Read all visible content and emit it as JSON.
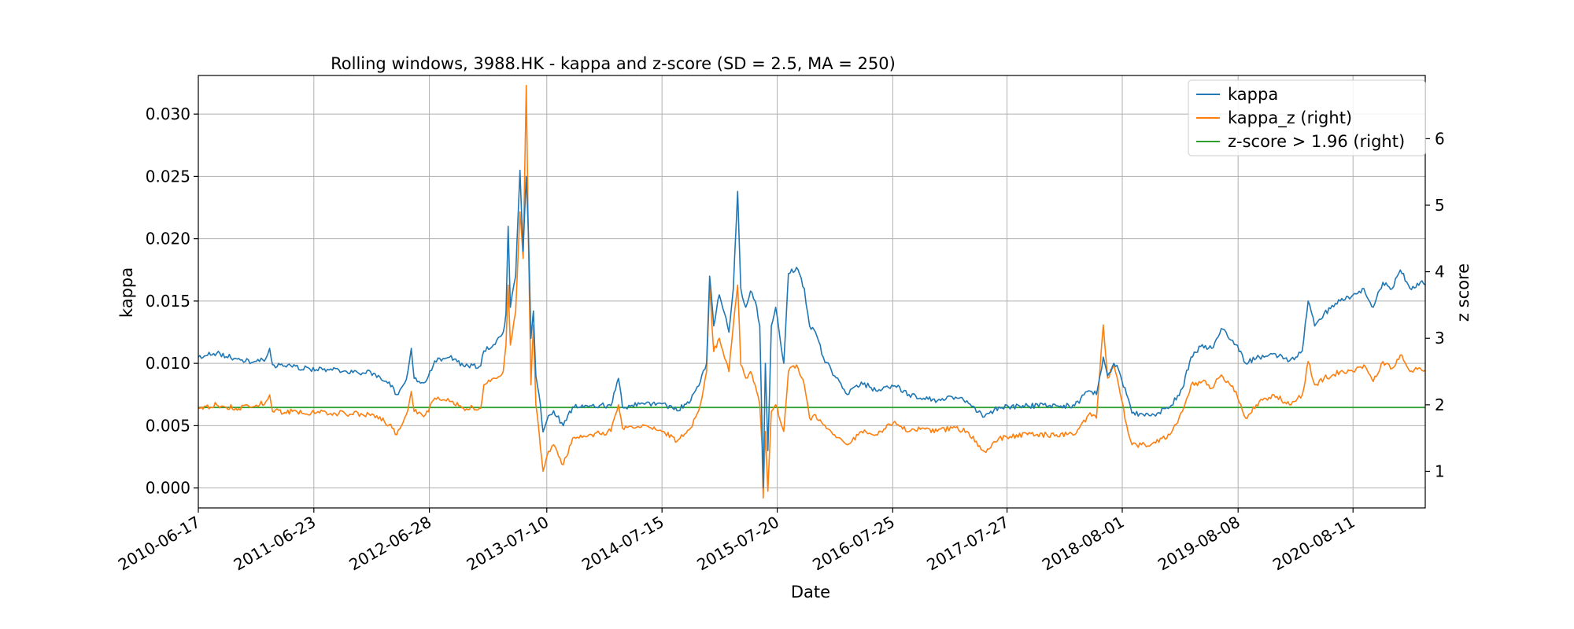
{
  "chart_data": {
    "type": "line",
    "title": "Rolling windows, 3988.HK - kappa and z-score (SD = 2.5, MA = 250)",
    "xlabel": "Date",
    "ylabel": "kappa",
    "ylabel_right": "z score",
    "xlim": [
      "2010-06-17",
      "2021-03-31"
    ],
    "ylim": [
      -0.0016,
      0.0331
    ],
    "ylim_right": [
      0.45,
      6.95
    ],
    "x_ticks": [
      "2010-06-17",
      "2011-06-23",
      "2012-06-28",
      "2013-07-10",
      "2014-07-15",
      "2015-07-20",
      "2016-07-25",
      "2017-07-27",
      "2018-08-01",
      "2019-08-08",
      "2020-08-11"
    ],
    "y_ticks": [
      "0.000",
      "0.005",
      "0.010",
      "0.015",
      "0.020",
      "0.025",
      "0.030"
    ],
    "y_ticks_right": [
      "1",
      "2",
      "3",
      "4",
      "5",
      "6"
    ],
    "grid": true,
    "legend_position": "top-right",
    "colors": {
      "kappa": "#1f77b4",
      "kappa_z": "#ff7f0e",
      "threshold": "#2ca02c"
    },
    "series": [
      {
        "name": "kappa",
        "axis": "left",
        "points": [
          [
            "2010-06-17",
            0.0105
          ],
          [
            "2010-08-15",
            0.0108
          ],
          [
            "2010-10-15",
            0.0104
          ],
          [
            "2010-12-10",
            0.0101
          ],
          [
            "2011-01-20",
            0.0104
          ],
          [
            "2011-02-01",
            0.0112
          ],
          [
            "2011-02-10",
            0.0099
          ],
          [
            "2011-04-15",
            0.0097
          ],
          [
            "2011-07-01",
            0.0095
          ],
          [
            "2011-10-01",
            0.0094
          ],
          [
            "2012-01-01",
            0.0092
          ],
          [
            "2012-02-20",
            0.0085
          ],
          [
            "2012-03-15",
            0.0075
          ],
          [
            "2012-04-15",
            0.0087
          ],
          [
            "2012-05-01",
            0.0112
          ],
          [
            "2012-05-10",
            0.0088
          ],
          [
            "2012-06-15",
            0.0085
          ],
          [
            "2012-07-15",
            0.0102
          ],
          [
            "2012-09-01",
            0.0105
          ],
          [
            "2012-10-15",
            0.0098
          ],
          [
            "2012-12-10",
            0.0098
          ],
          [
            "2012-12-20",
            0.011
          ],
          [
            "2013-01-20",
            0.0115
          ],
          [
            "2013-02-20",
            0.0125
          ],
          [
            "2013-03-01",
            0.014
          ],
          [
            "2013-03-08",
            0.021
          ],
          [
            "2013-03-15",
            0.0145
          ],
          [
            "2013-04-01",
            0.017
          ],
          [
            "2013-04-15",
            0.0255
          ],
          [
            "2013-04-25",
            0.019
          ],
          [
            "2013-05-05",
            0.025
          ],
          [
            "2013-05-12",
            0.0205
          ],
          [
            "2013-05-20",
            0.012
          ],
          [
            "2013-05-28",
            0.0142
          ],
          [
            "2013-06-05",
            0.009
          ],
          [
            "2013-06-15",
            0.0075
          ],
          [
            "2013-06-28",
            0.0045
          ],
          [
            "2013-07-15",
            0.0058
          ],
          [
            "2013-08-01",
            0.0062
          ],
          [
            "2013-09-01",
            0.005
          ],
          [
            "2013-10-01",
            0.0065
          ],
          [
            "2013-12-01",
            0.0066
          ],
          [
            "2014-02-01",
            0.0066
          ],
          [
            "2014-02-25",
            0.0088
          ],
          [
            "2014-03-10",
            0.0065
          ],
          [
            "2014-05-15",
            0.0068
          ],
          [
            "2014-07-20",
            0.0068
          ],
          [
            "2014-09-01",
            0.0062
          ],
          [
            "2014-10-15",
            0.007
          ],
          [
            "2014-11-15",
            0.0085
          ],
          [
            "2014-12-05",
            0.01
          ],
          [
            "2014-12-15",
            0.017
          ],
          [
            "2014-12-28",
            0.013
          ],
          [
            "2015-01-15",
            0.0155
          ],
          [
            "2015-02-01",
            0.014
          ],
          [
            "2015-02-15",
            0.0125
          ],
          [
            "2015-03-01",
            0.016
          ],
          [
            "2015-03-15",
            0.0238
          ],
          [
            "2015-03-25",
            0.016
          ],
          [
            "2015-04-10",
            0.0145
          ],
          [
            "2015-04-25",
            0.0158
          ],
          [
            "2015-05-10",
            0.015
          ],
          [
            "2015-05-25",
            0.013
          ],
          [
            "2015-06-01",
            0.005
          ],
          [
            "2015-06-05",
            0.0
          ],
          [
            "2015-06-12",
            0.01
          ],
          [
            "2015-06-20",
            0.003
          ],
          [
            "2015-07-01",
            0.013
          ],
          [
            "2015-07-15",
            0.0145
          ],
          [
            "2015-08-10",
            0.01
          ],
          [
            "2015-08-25",
            0.0172
          ],
          [
            "2015-09-20",
            0.0177
          ],
          [
            "2015-10-15",
            0.016
          ],
          [
            "2015-11-01",
            0.013
          ],
          [
            "2015-11-20",
            0.0125
          ],
          [
            "2015-12-15",
            0.0105
          ],
          [
            "2016-01-20",
            0.009
          ],
          [
            "2016-03-01",
            0.0075
          ],
          [
            "2016-04-15",
            0.0085
          ],
          [
            "2016-06-01",
            0.0078
          ],
          [
            "2016-08-01",
            0.0082
          ],
          [
            "2016-09-15",
            0.0075
          ],
          [
            "2016-11-01",
            0.0072
          ],
          [
            "2016-12-15",
            0.007
          ],
          [
            "2017-02-01",
            0.0073
          ],
          [
            "2017-03-20",
            0.007
          ],
          [
            "2017-05-15",
            0.0057
          ],
          [
            "2017-07-01",
            0.0065
          ],
          [
            "2017-10-01",
            0.0066
          ],
          [
            "2018-01-01",
            0.0066
          ],
          [
            "2018-03-01",
            0.0066
          ],
          [
            "2018-04-15",
            0.0078
          ],
          [
            "2018-05-10",
            0.0075
          ],
          [
            "2018-06-01",
            0.0105
          ],
          [
            "2018-06-15",
            0.009
          ],
          [
            "2018-07-05",
            0.01
          ],
          [
            "2018-07-20",
            0.0095
          ],
          [
            "2018-08-15",
            0.0075
          ],
          [
            "2018-09-01",
            0.006
          ],
          [
            "2018-11-01",
            0.0058
          ],
          [
            "2019-01-01",
            0.0065
          ],
          [
            "2019-02-10",
            0.008
          ],
          [
            "2019-03-10",
            0.0105
          ],
          [
            "2019-04-15",
            0.0115
          ],
          [
            "2019-05-15",
            0.0112
          ],
          [
            "2019-06-15",
            0.0128
          ],
          [
            "2019-08-01",
            0.0115
          ],
          [
            "2019-09-01",
            0.01
          ],
          [
            "2019-10-15",
            0.0105
          ],
          [
            "2019-12-01",
            0.0108
          ],
          [
            "2020-01-20",
            0.0102
          ],
          [
            "2020-03-01",
            0.011
          ],
          [
            "2020-03-20",
            0.015
          ],
          [
            "2020-04-10",
            0.013
          ],
          [
            "2020-05-10",
            0.014
          ],
          [
            "2020-07-01",
            0.015
          ],
          [
            "2020-08-11",
            0.0155
          ],
          [
            "2020-09-15",
            0.016
          ],
          [
            "2020-10-15",
            0.0145
          ],
          [
            "2020-11-15",
            0.0165
          ],
          [
            "2020-12-15",
            0.016
          ],
          [
            "2021-01-10",
            0.0175
          ],
          [
            "2021-02-10",
            0.016
          ],
          [
            "2021-03-15",
            0.0165
          ],
          [
            "2021-03-31",
            0.0163
          ]
        ]
      },
      {
        "name": "kappa_z (right)",
        "axis": "right",
        "points": [
          [
            "2010-06-17",
            1.95
          ],
          [
            "2010-08-15",
            2.0
          ],
          [
            "2010-10-15",
            1.95
          ],
          [
            "2010-12-10",
            1.97
          ],
          [
            "2011-01-20",
            2.05
          ],
          [
            "2011-02-01",
            2.15
          ],
          [
            "2011-02-10",
            1.9
          ],
          [
            "2011-04-15",
            1.9
          ],
          [
            "2011-07-01",
            1.88
          ],
          [
            "2011-10-01",
            1.87
          ],
          [
            "2012-01-01",
            1.85
          ],
          [
            "2012-02-20",
            1.7
          ],
          [
            "2012-03-15",
            1.55
          ],
          [
            "2012-04-15",
            1.85
          ],
          [
            "2012-05-01",
            2.2
          ],
          [
            "2012-05-10",
            1.9
          ],
          [
            "2012-06-15",
            1.85
          ],
          [
            "2012-07-15",
            2.1
          ],
          [
            "2012-09-01",
            2.05
          ],
          [
            "2012-10-15",
            1.95
          ],
          [
            "2012-12-10",
            1.95
          ],
          [
            "2012-12-20",
            2.3
          ],
          [
            "2013-01-20",
            2.4
          ],
          [
            "2013-02-20",
            2.5
          ],
          [
            "2013-03-01",
            2.9
          ],
          [
            "2013-03-08",
            3.8
          ],
          [
            "2013-03-15",
            2.9
          ],
          [
            "2013-04-01",
            3.4
          ],
          [
            "2013-04-15",
            4.9
          ],
          [
            "2013-04-25",
            4.2
          ],
          [
            "2013-05-05",
            6.8
          ],
          [
            "2013-05-12",
            4.5
          ],
          [
            "2013-05-20",
            2.3
          ],
          [
            "2013-05-28",
            3.2
          ],
          [
            "2013-06-05",
            2.0
          ],
          [
            "2013-06-15",
            1.6
          ],
          [
            "2013-06-28",
            1.0
          ],
          [
            "2013-07-15",
            1.3
          ],
          [
            "2013-08-01",
            1.4
          ],
          [
            "2013-09-01",
            1.1
          ],
          [
            "2013-10-01",
            1.5
          ],
          [
            "2013-12-01",
            1.55
          ],
          [
            "2014-02-01",
            1.6
          ],
          [
            "2014-02-25",
            2.0
          ],
          [
            "2014-03-10",
            1.65
          ],
          [
            "2014-05-15",
            1.7
          ],
          [
            "2014-07-20",
            1.6
          ],
          [
            "2014-09-01",
            1.45
          ],
          [
            "2014-10-15",
            1.65
          ],
          [
            "2014-11-15",
            2.0
          ],
          [
            "2014-12-05",
            2.5
          ],
          [
            "2014-12-15",
            3.8
          ],
          [
            "2014-12-28",
            2.8
          ],
          [
            "2015-01-15",
            3.0
          ],
          [
            "2015-02-01",
            2.7
          ],
          [
            "2015-02-15",
            2.5
          ],
          [
            "2015-03-01",
            3.2
          ],
          [
            "2015-03-15",
            3.8
          ],
          [
            "2015-03-25",
            2.6
          ],
          [
            "2015-04-10",
            2.4
          ],
          [
            "2015-04-25",
            2.5
          ],
          [
            "2015-05-10",
            2.3
          ],
          [
            "2015-05-25",
            2.0
          ],
          [
            "2015-06-01",
            1.4
          ],
          [
            "2015-06-05",
            0.6
          ],
          [
            "2015-06-12",
            1.6
          ],
          [
            "2015-06-20",
            0.7
          ],
          [
            "2015-07-01",
            1.9
          ],
          [
            "2015-07-15",
            2.0
          ],
          [
            "2015-08-10",
            1.6
          ],
          [
            "2015-08-25",
            2.5
          ],
          [
            "2015-09-20",
            2.6
          ],
          [
            "2015-10-15",
            2.3
          ],
          [
            "2015-11-01",
            1.8
          ],
          [
            "2015-11-20",
            1.85
          ],
          [
            "2015-12-15",
            1.7
          ],
          [
            "2016-01-20",
            1.55
          ],
          [
            "2016-03-01",
            1.4
          ],
          [
            "2016-04-15",
            1.6
          ],
          [
            "2016-06-01",
            1.55
          ],
          [
            "2016-08-01",
            1.75
          ],
          [
            "2016-09-15",
            1.6
          ],
          [
            "2016-11-01",
            1.65
          ],
          [
            "2016-12-15",
            1.6
          ],
          [
            "2017-02-01",
            1.65
          ],
          [
            "2017-03-20",
            1.6
          ],
          [
            "2017-05-15",
            1.3
          ],
          [
            "2017-07-01",
            1.5
          ],
          [
            "2017-10-01",
            1.55
          ],
          [
            "2018-01-01",
            1.55
          ],
          [
            "2018-03-01",
            1.55
          ],
          [
            "2018-04-15",
            1.85
          ],
          [
            "2018-05-10",
            1.8
          ],
          [
            "2018-06-01",
            3.2
          ],
          [
            "2018-06-15",
            2.4
          ],
          [
            "2018-07-05",
            2.6
          ],
          [
            "2018-07-20",
            2.3
          ],
          [
            "2018-08-15",
            1.7
          ],
          [
            "2018-09-01",
            1.4
          ],
          [
            "2018-11-01",
            1.4
          ],
          [
            "2019-01-01",
            1.55
          ],
          [
            "2019-02-10",
            1.9
          ],
          [
            "2019-03-10",
            2.3
          ],
          [
            "2019-04-15",
            2.35
          ],
          [
            "2019-05-15",
            2.25
          ],
          [
            "2019-06-15",
            2.45
          ],
          [
            "2019-08-01",
            2.2
          ],
          [
            "2019-09-01",
            1.8
          ],
          [
            "2019-10-15",
            2.05
          ],
          [
            "2019-12-01",
            2.15
          ],
          [
            "2020-01-20",
            2.0
          ],
          [
            "2020-03-01",
            2.15
          ],
          [
            "2020-03-20",
            2.65
          ],
          [
            "2020-04-10",
            2.3
          ],
          [
            "2020-05-10",
            2.4
          ],
          [
            "2020-07-01",
            2.5
          ],
          [
            "2020-08-11",
            2.5
          ],
          [
            "2020-09-15",
            2.6
          ],
          [
            "2020-10-15",
            2.35
          ],
          [
            "2020-11-15",
            2.65
          ],
          [
            "2020-12-15",
            2.55
          ],
          [
            "2021-01-10",
            2.75
          ],
          [
            "2021-02-10",
            2.5
          ],
          [
            "2021-03-15",
            2.55
          ],
          [
            "2021-03-31",
            2.52
          ]
        ]
      },
      {
        "name": "z-score > 1.96 (right)",
        "axis": "right",
        "points": [
          [
            "2010-06-17",
            1.96
          ],
          [
            "2021-03-31",
            1.96
          ]
        ]
      }
    ]
  }
}
